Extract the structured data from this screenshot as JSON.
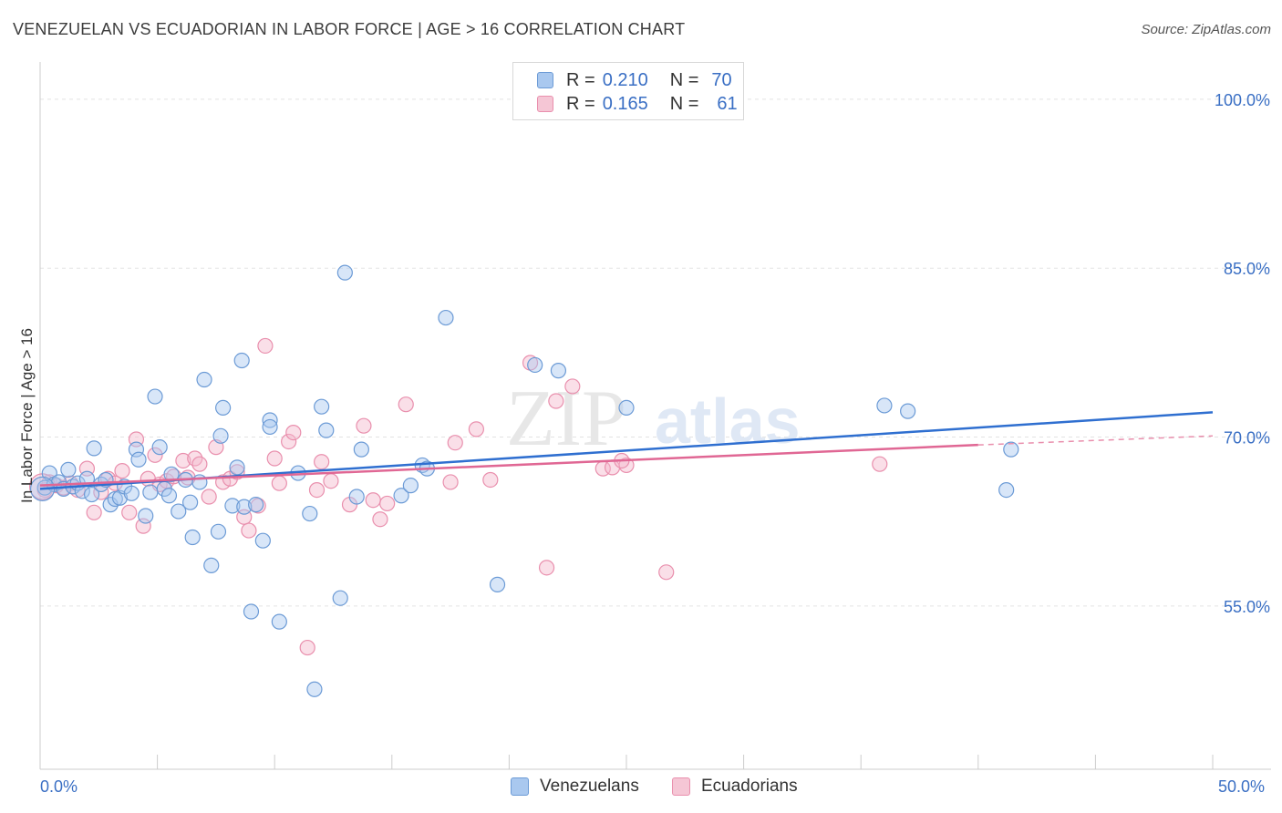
{
  "title": "VENEZUELAN VS ECUADORIAN IN LABOR FORCE | AGE > 16 CORRELATION CHART",
  "source": "Source: ZipAtlas.com",
  "legend": {
    "row1": {
      "r_label": "R =",
      "r_value": "0.210",
      "n_label": "N =",
      "n_value": "70"
    },
    "row2": {
      "r_label": "R =",
      "r_value": "0.165",
      "n_label": "N =",
      "n_value": "61"
    }
  },
  "bottom_legend": {
    "venezuelans": "Venezuelans",
    "ecuadorians": "Ecuadorians"
  },
  "colors": {
    "venezuelan_fill": "#a9c8ef",
    "venezuelan_stroke": "#6c9bd6",
    "venezuelan_line": "#2f6fd0",
    "ecuadorian_fill": "#f5b8cc",
    "ecuadorian_stroke": "#e98fad",
    "ecuadorian_line": "#e06794",
    "tick_text": "#3a6fc4",
    "grid": "#e3e3e3"
  },
  "watermark": {
    "zip": "ZIP",
    "atlas": "atlas"
  },
  "chart_data": {
    "type": "scatter",
    "title": "VENEZUELAN VS ECUADORIAN IN LABOR FORCE | AGE > 16 CORRELATION CHART",
    "xlabel": "",
    "ylabel": "In Labor Force | Age > 16",
    "xlim": [
      0,
      50
    ],
    "ylim": [
      40.5,
      102.5
    ],
    "x_tick_labels": [
      "0.0%",
      "50.0%"
    ],
    "y_ticks": [
      55,
      70,
      85,
      100
    ],
    "y_tick_labels": [
      "55.0%",
      "70.0%",
      "85.0%",
      "100.0%"
    ],
    "grid": true,
    "legend_position": "top-center",
    "series": [
      {
        "name": "Venezuelans",
        "r": 0.21,
        "n": 70,
        "trend": {
          "x": [
            0,
            50
          ],
          "y": [
            65.4,
            72.2
          ]
        },
        "points": [
          [
            0.2,
            65.5
          ],
          [
            0.4,
            66.8
          ],
          [
            0.6,
            65.8
          ],
          [
            0.8,
            66.0
          ],
          [
            1.0,
            65.4
          ],
          [
            1.2,
            67.1
          ],
          [
            1.4,
            65.6
          ],
          [
            1.6,
            65.9
          ],
          [
            1.8,
            65.2
          ],
          [
            2.0,
            66.3
          ],
          [
            2.2,
            64.9
          ],
          [
            2.3,
            69.0
          ],
          [
            2.6,
            65.8
          ],
          [
            2.8,
            66.2
          ],
          [
            3.0,
            64.0
          ],
          [
            3.2,
            64.5
          ],
          [
            3.4,
            64.6
          ],
          [
            3.6,
            65.6
          ],
          [
            3.9,
            65.0
          ],
          [
            4.1,
            68.9
          ],
          [
            4.2,
            68.0
          ],
          [
            4.5,
            63.0
          ],
          [
            4.7,
            65.1
          ],
          [
            4.9,
            73.6
          ],
          [
            5.1,
            69.1
          ],
          [
            5.3,
            65.4
          ],
          [
            5.5,
            64.8
          ],
          [
            5.6,
            66.7
          ],
          [
            5.9,
            63.4
          ],
          [
            6.2,
            66.2
          ],
          [
            6.4,
            64.2
          ],
          [
            6.5,
            61.1
          ],
          [
            6.8,
            66.0
          ],
          [
            7.0,
            75.1
          ],
          [
            7.3,
            58.6
          ],
          [
            7.6,
            61.6
          ],
          [
            7.7,
            70.1
          ],
          [
            7.8,
            72.6
          ],
          [
            8.2,
            63.9
          ],
          [
            8.4,
            67.3
          ],
          [
            8.6,
            76.8
          ],
          [
            8.7,
            63.8
          ],
          [
            9.0,
            54.5
          ],
          [
            9.2,
            64.0
          ],
          [
            9.5,
            60.8
          ],
          [
            9.8,
            71.5
          ],
          [
            9.8,
            70.9
          ],
          [
            10.2,
            53.6
          ],
          [
            11.0,
            66.8
          ],
          [
            11.5,
            63.2
          ],
          [
            11.7,
            47.6
          ],
          [
            12.0,
            72.7
          ],
          [
            12.2,
            70.6
          ],
          [
            12.8,
            55.7
          ],
          [
            13.0,
            84.6
          ],
          [
            13.5,
            64.7
          ],
          [
            13.7,
            68.9
          ],
          [
            15.4,
            64.8
          ],
          [
            15.8,
            65.7
          ],
          [
            16.3,
            67.5
          ],
          [
            16.5,
            67.2
          ],
          [
            17.3,
            80.6
          ],
          [
            21.1,
            76.4
          ],
          [
            22.1,
            75.9
          ],
          [
            19.5,
            56.9
          ],
          [
            25.0,
            72.6
          ],
          [
            36.0,
            72.8
          ],
          [
            37.0,
            72.3
          ],
          [
            41.2,
            65.3
          ],
          [
            41.4,
            68.9
          ]
        ]
      },
      {
        "name": "Ecuadorians",
        "r": 0.165,
        "n": 61,
        "trend": {
          "x": [
            0,
            40
          ],
          "y": [
            65.7,
            69.3
          ]
        },
        "trend_dashed": {
          "x": [
            40,
            50
          ],
          "y": [
            69.3,
            70.1
          ]
        },
        "points": [
          [
            0.2,
            65.3
          ],
          [
            0.4,
            66.0
          ],
          [
            0.7,
            65.7
          ],
          [
            1.0,
            65.5
          ],
          [
            1.3,
            65.9
          ],
          [
            1.6,
            65.3
          ],
          [
            2.0,
            67.2
          ],
          [
            2.3,
            63.3
          ],
          [
            2.6,
            65.1
          ],
          [
            2.9,
            66.3
          ],
          [
            3.2,
            65.9
          ],
          [
            3.5,
            67.0
          ],
          [
            3.8,
            63.3
          ],
          [
            4.1,
            69.8
          ],
          [
            4.4,
            62.1
          ],
          [
            4.6,
            66.3
          ],
          [
            4.9,
            68.4
          ],
          [
            5.1,
            65.8
          ],
          [
            5.4,
            66.1
          ],
          [
            5.7,
            66.5
          ],
          [
            6.1,
            67.9
          ],
          [
            6.3,
            66.4
          ],
          [
            6.6,
            68.1
          ],
          [
            6.8,
            67.6
          ],
          [
            7.2,
            64.7
          ],
          [
            7.5,
            69.1
          ],
          [
            7.8,
            66.0
          ],
          [
            8.1,
            66.3
          ],
          [
            8.4,
            66.9
          ],
          [
            8.7,
            62.9
          ],
          [
            8.9,
            61.7
          ],
          [
            9.3,
            63.9
          ],
          [
            9.6,
            78.1
          ],
          [
            10.0,
            68.1
          ],
          [
            10.2,
            65.9
          ],
          [
            10.6,
            69.6
          ],
          [
            10.8,
            70.4
          ],
          [
            11.4,
            51.3
          ],
          [
            11.8,
            65.3
          ],
          [
            12.0,
            67.8
          ],
          [
            12.4,
            66.1
          ],
          [
            13.2,
            64.0
          ],
          [
            13.8,
            71.0
          ],
          [
            14.2,
            64.4
          ],
          [
            14.5,
            62.7
          ],
          [
            14.8,
            64.1
          ],
          [
            15.6,
            72.9
          ],
          [
            17.5,
            66.0
          ],
          [
            17.7,
            69.5
          ],
          [
            18.6,
            70.7
          ],
          [
            19.2,
            66.2
          ],
          [
            20.9,
            76.6
          ],
          [
            22.0,
            73.2
          ],
          [
            22.7,
            74.5
          ],
          [
            21.6,
            58.4
          ],
          [
            24.0,
            67.2
          ],
          [
            24.4,
            67.3
          ],
          [
            25.0,
            67.5
          ],
          [
            26.7,
            58.0
          ],
          [
            35.8,
            67.6
          ],
          [
            24.8,
            67.9
          ]
        ]
      }
    ]
  }
}
